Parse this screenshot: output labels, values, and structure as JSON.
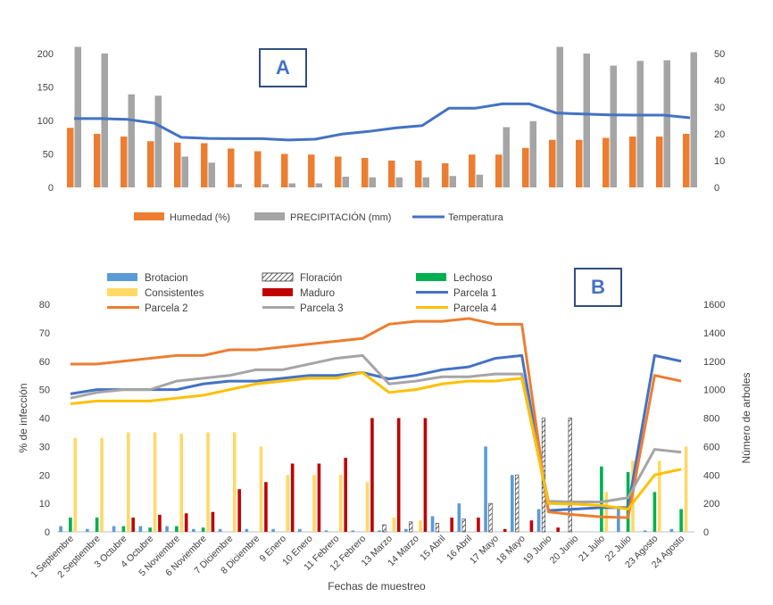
{
  "panelA": {
    "label": "A",
    "legend": [
      "Humedad (%)",
      "PRECIPITACIÓN (mm)",
      "Temperatura"
    ],
    "colors": {
      "humedad": "#ed7d31",
      "precip": "#a5a5a5",
      "temp": "#4472c4"
    }
  },
  "panelB": {
    "label": "B",
    "ylabel_left": "% de infección",
    "ylabel_right": "Número de arboles",
    "xlabel": "Fechas de muestreo",
    "legend": [
      "Brotacion",
      "Floración",
      "Lechoso",
      "Consistentes",
      "Maduro",
      "Parcela 1",
      "Parcela 2",
      "Parcela 3",
      "Parcela 4"
    ],
    "colors": {
      "brotacion": "#5b9bd5",
      "floracion": "#444444",
      "lechoso": "#00b050",
      "consistentes": "#ffd966",
      "maduro": "#c00000",
      "p1": "#4472c4",
      "p2": "#ed7d31",
      "p3": "#a5a5a5",
      "p4": "#ffc000"
    }
  },
  "chart_data": [
    {
      "type": "bar",
      "title": "A",
      "categories": [
        "1 Septiembre",
        "2 Septiembre",
        "3 Octubre",
        "4 Octubre",
        "5 Noviembre",
        "6 Noviembre",
        "7 Diciembre",
        "8 Diciembre",
        "9 Enero",
        "10 Enero",
        "11 Febrero",
        "12 Febrero",
        "13 Marzo",
        "14 Marzo",
        "15 Abril",
        "16 Abril",
        "17 Mayo",
        "18 Mayo",
        "19 Junio",
        "20 Junio",
        "21 Julio",
        "22 Julio",
        "23 Agosto",
        "24 Agosto"
      ],
      "ylim_left": [
        0,
        200
      ],
      "yticks_left": [
        0,
        50,
        100,
        150,
        200
      ],
      "ylim_right": [
        0,
        50
      ],
      "yticks_right": [
        0,
        10,
        20,
        30,
        40,
        50
      ],
      "series": [
        {
          "name": "Humedad (%)",
          "axis": "left",
          "kind": "bar",
          "values": [
            89,
            80,
            76,
            69,
            67,
            66,
            58,
            54,
            50,
            49,
            46,
            44,
            40,
            40,
            36,
            49,
            49,
            59,
            71,
            71,
            74,
            76,
            76,
            80
          ]
        },
        {
          "name": "PRECIPITACIÓN (mm)",
          "axis": "left",
          "kind": "bar",
          "values": [
            210,
            200,
            139,
            137,
            46,
            37,
            5,
            5,
            6,
            6,
            16,
            15,
            15,
            15,
            17,
            19,
            90,
            99,
            210,
            200,
            182,
            189,
            190,
            202
          ]
        },
        {
          "name": "Temperatura",
          "axis": "right",
          "kind": "line",
          "values": [
            25.7,
            25.7,
            25.4,
            24.0,
            18.7,
            18.3,
            18.2,
            18.2,
            17.7,
            18.0,
            19.9,
            20.9,
            22.2,
            23.1,
            29.6,
            29.6,
            31.2,
            31.2,
            27.8,
            27.4,
            27.1,
            27.0,
            27.0,
            26.0
          ]
        }
      ]
    },
    {
      "type": "bar",
      "title": "B",
      "xlabel": "Fechas de muestreo",
      "ylabel": "% de infección",
      "ylabel_right": "Número de arboles",
      "categories": [
        "1 Septiembre",
        "2 Septiembre",
        "3 Octubre",
        "4 Octubre",
        "5 Noviembre",
        "6 Noviembre",
        "7 Diciembre",
        "8 Diciembre",
        "9 Enero",
        "10 Enero",
        "11 Febrero",
        "12 Febrero",
        "13 Marzo",
        "14 Marzo",
        "15 Abril",
        "16 Abril",
        "17 Mayo",
        "18 Mayo",
        "19 Junio",
        "20 Junio",
        "21 Julio",
        "22 Julio",
        "23 Agosto",
        "24 Agosto"
      ],
      "ylim_left": [
        0,
        80
      ],
      "yticks_left": [
        0,
        10,
        20,
        30,
        40,
        50,
        60,
        70,
        80
      ],
      "ylim_right": [
        0,
        1600
      ],
      "yticks_right": [
        0,
        200,
        400,
        600,
        800,
        1000,
        1200,
        1400,
        1600
      ],
      "series": [
        {
          "name": "Brotacion",
          "axis": "left",
          "kind": "bar",
          "values": [
            2,
            1,
            2,
            2,
            2,
            1,
            1,
            1,
            1,
            1,
            0.5,
            0.5,
            0.5,
            1,
            5.5,
            10,
            30,
            20,
            8,
            0,
            0,
            9,
            0.5,
            1
          ]
        },
        {
          "name": "Floración",
          "axis": "left",
          "kind": "bar",
          "values": [
            0,
            0,
            0,
            0,
            0,
            0,
            0,
            0,
            0,
            0,
            0,
            0,
            2.5,
            3.5,
            3,
            4.5,
            10,
            20,
            40,
            40,
            0,
            0,
            0,
            0
          ]
        },
        {
          "name": "Lechoso",
          "axis": "left",
          "kind": "bar",
          "values": [
            5,
            5,
            2,
            1.5,
            2,
            1.5,
            0,
            0,
            0,
            0,
            0,
            0,
            0,
            0,
            0,
            0,
            0,
            0,
            0,
            0,
            23,
            21,
            14,
            8
          ]
        },
        {
          "name": "Consistentes",
          "axis": "left",
          "kind": "bar",
          "values": [
            33,
            33,
            35,
            35,
            34.5,
            35,
            35,
            30,
            20,
            20,
            20,
            17.5,
            5,
            4,
            0,
            0,
            0,
            0,
            0,
            0,
            14,
            25,
            25,
            30
          ]
        },
        {
          "name": "Maduro",
          "axis": "left",
          "kind": "bar",
          "values": [
            0,
            0,
            5,
            6,
            6.5,
            7,
            15,
            17.5,
            24,
            24,
            26,
            40,
            40,
            40,
            5,
            5,
            1,
            4,
            1.5,
            0,
            0,
            0,
            0,
            0
          ]
        },
        {
          "name": "Parcela 1",
          "axis": "right",
          "kind": "line",
          "values": [
            970,
            1000,
            1000,
            1000,
            1000,
            1040,
            1060,
            1060,
            1080,
            1100,
            1100,
            1120,
            1075,
            1100,
            1140,
            1160,
            1220,
            1240,
            150,
            160,
            170,
            170,
            1240,
            1200
          ]
        },
        {
          "name": "Parcela 2",
          "axis": "right",
          "kind": "line",
          "values": [
            1180,
            1180,
            1200,
            1220,
            1240,
            1240,
            1280,
            1280,
            1300,
            1320,
            1340,
            1360,
            1460,
            1480,
            1480,
            1500,
            1460,
            1460,
            140,
            120,
            105,
            100,
            1100,
            1060
          ]
        },
        {
          "name": "Parcela 3",
          "axis": "right",
          "kind": "line",
          "values": [
            940,
            980,
            1000,
            1000,
            1060,
            1080,
            1100,
            1140,
            1140,
            1180,
            1220,
            1240,
            1040,
            1060,
            1090,
            1090,
            1110,
            1110,
            215,
            210,
            210,
            240,
            580,
            560
          ]
        },
        {
          "name": "Parcela 4",
          "axis": "right",
          "kind": "line",
          "values": [
            900,
            920,
            920,
            920,
            940,
            960,
            1000,
            1040,
            1060,
            1080,
            1080,
            1120,
            980,
            1000,
            1040,
            1060,
            1060,
            1080,
            200,
            195,
            185,
            160,
            400,
            440
          ]
        }
      ]
    }
  ]
}
